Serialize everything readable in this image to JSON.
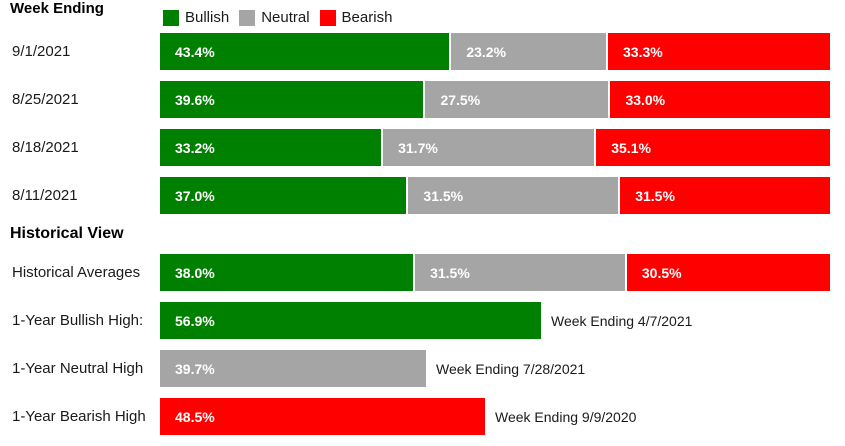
{
  "header": {
    "title": "Week Ending"
  },
  "section_heading": "Historical View",
  "chart_data": {
    "type": "bar",
    "orientation": "horizontal",
    "stacked": true,
    "unit": "percent",
    "xlim": [
      0,
      100
    ],
    "grid": false,
    "legend_position": "top",
    "series": [
      {
        "name": "Bullish",
        "color": "#008000"
      },
      {
        "name": "Neutral",
        "color": "#a5a5a5"
      },
      {
        "name": "Bearish",
        "color": "#ff0000"
      }
    ],
    "weekly_rows": [
      {
        "label": "9/1/2021",
        "values": [
          43.4,
          23.2,
          33.3
        ]
      },
      {
        "label": "8/25/2021",
        "values": [
          39.6,
          27.5,
          33.0
        ]
      },
      {
        "label": "8/18/2021",
        "values": [
          33.2,
          31.7,
          35.1
        ]
      },
      {
        "label": "8/11/2021",
        "values": [
          37.0,
          31.5,
          31.5
        ]
      }
    ],
    "historical_rows": [
      {
        "label": "Historical Averages",
        "values": [
          38.0,
          31.5,
          30.5
        ]
      },
      {
        "label": "1-Year Bullish High:",
        "series": "Bullish",
        "value": 56.9,
        "annotation": "Week Ending 4/7/2021"
      },
      {
        "label": "1-Year Neutral High",
        "series": "Neutral",
        "value": 39.7,
        "annotation": "Week Ending 7/28/2021"
      },
      {
        "label": "1-Year Bearish High",
        "series": "Bearish",
        "value": 48.5,
        "annotation": "Week Ending 9/9/2020"
      }
    ]
  }
}
